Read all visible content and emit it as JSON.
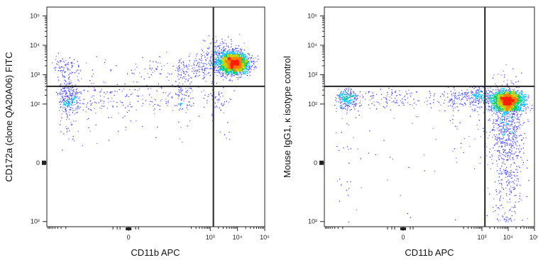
{
  "chart_data": [
    {
      "type": "scatter",
      "style": "flow-cytometry-density-dot-plot",
      "xlabel": "CD11b APC",
      "ylabel": "CD172a (clone QA20A06) FITC",
      "x_scale": "biexponential",
      "y_scale": "biexponential",
      "xlim": [
        -1000,
        100000
      ],
      "ylim": [
        -150,
        200000
      ],
      "x_ticks": [
        {
          "value": 0,
          "label": "0"
        },
        {
          "value": 1000,
          "label": "10³"
        },
        {
          "value": 10000,
          "label": "10⁴"
        },
        {
          "value": 100000,
          "label": "10⁵"
        }
      ],
      "y_ticks": [
        {
          "value": -100,
          "label": "10²"
        },
        {
          "value": 0,
          "label": "0"
        },
        {
          "value": 100,
          "label": "10²"
        },
        {
          "value": 1000,
          "label": "10³"
        },
        {
          "value": 10000,
          "label": "10⁴"
        },
        {
          "value": 100000,
          "label": "10⁵"
        }
      ],
      "gate": {
        "x": 1300,
        "y": 400
      },
      "populations": [
        {
          "cx": 7000,
          "cy": 2500,
          "sx_decades": 0.28,
          "sy_decades": 0.18,
          "count": 2300
        },
        {
          "cx": 2500,
          "cy": 5000,
          "sx_decades": 0.35,
          "sy_decades": 0.25,
          "count": 250
        },
        {
          "cx": -80,
          "cy": 160,
          "sx": 120,
          "sy_decades": 0.35,
          "count": 600
        },
        {
          "cx": 200,
          "cy": 1700,
          "sx_decades": 0.55,
          "sy_decades": 0.18,
          "count": 180
        },
        {
          "cx": -150,
          "cy": 1800,
          "sx": 180,
          "sy_decades": 0.2,
          "count": 120
        },
        {
          "cx": 2000,
          "cy": 150,
          "sx_decades": 0.3,
          "sy_decades": 0.3,
          "count": 70
        }
      ],
      "grid": false
    },
    {
      "type": "scatter",
      "style": "flow-cytometry-density-dot-plot",
      "xlabel": "CD11b APC",
      "ylabel": "Mouse IgG1, κ isotype control",
      "x_scale": "biexponential",
      "y_scale": "biexponential",
      "xlim": [
        -1000,
        100000
      ],
      "ylim": [
        -150,
        200000
      ],
      "x_ticks": [
        {
          "value": 0,
          "label": "0"
        },
        {
          "value": 1000,
          "label": "10³"
        },
        {
          "value": 10000,
          "label": "10⁴"
        },
        {
          "value": 100000,
          "label": "10⁵"
        }
      ],
      "y_ticks": [
        {
          "value": -100,
          "label": "10²"
        },
        {
          "value": 0,
          "label": "0"
        },
        {
          "value": 100,
          "label": "10²"
        },
        {
          "value": 1000,
          "label": "10³"
        },
        {
          "value": 10000,
          "label": "10⁴"
        },
        {
          "value": 100000,
          "label": "10⁵"
        }
      ],
      "gate": {
        "x": 1300,
        "y": 400
      },
      "populations": [
        {
          "cx": 9000,
          "cy": 110,
          "sx_decades": 0.3,
          "sy": 75,
          "count": 2800
        },
        {
          "cx": -60,
          "cy": 150,
          "sx": 130,
          "sy": 80,
          "count": 550
        },
        {
          "cx": 700,
          "cy": 170,
          "sx_decades": 0.25,
          "sy": 90,
          "count": 220
        },
        {
          "cx": 9000,
          "cy": 500,
          "sx_decades": 0.3,
          "sy_decades": 0.25,
          "count": 40
        }
      ],
      "grid": false
    }
  ],
  "density_colors": [
    "#3a3aff",
    "#7a7aff",
    "#00c0ff",
    "#00d060",
    "#c8d000",
    "#ff8000",
    "#ff2000"
  ]
}
